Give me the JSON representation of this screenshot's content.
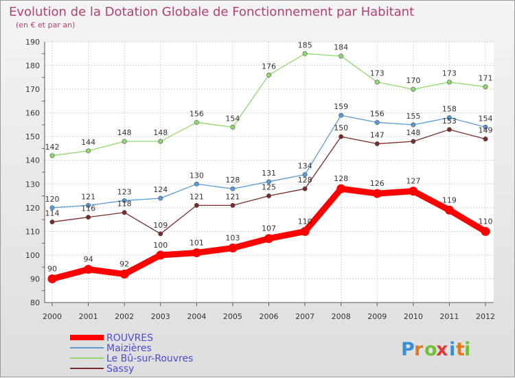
{
  "chart_data": {
    "type": "line",
    "title": "Evolution de la Dotation Globale de Fonctionnement par Habitant",
    "subtitle": "(en € et par an)",
    "x": [
      "2000",
      "2001",
      "2002",
      "2003",
      "2004",
      "2005",
      "2006",
      "2007",
      "2008",
      "2009",
      "2010",
      "2011",
      "2012"
    ],
    "ylim": [
      80,
      190
    ],
    "yticks": [
      80,
      90,
      100,
      110,
      120,
      130,
      140,
      150,
      160,
      170,
      180,
      190
    ],
    "grid": true,
    "legend_position": "bottom-left",
    "series": [
      {
        "name": "ROUVRES",
        "color": "#ff0000",
        "values": [
          90,
          94,
          92,
          100,
          101,
          103,
          107,
          110,
          128,
          126,
          127,
          119,
          110
        ]
      },
      {
        "name": "Maizières",
        "color": "#5b9bd5",
        "values": [
          120,
          121,
          123,
          124,
          130,
          128,
          131,
          134,
          159,
          156,
          155,
          158,
          154
        ]
      },
      {
        "name": "Le Bû-sur-Rouvres",
        "color": "#8fd86a",
        "values": [
          142,
          144,
          148,
          148,
          156,
          154,
          176,
          185,
          184,
          173,
          170,
          173,
          171
        ]
      },
      {
        "name": "Sassy",
        "color": "#7a2a2a",
        "values": [
          114,
          116,
          118,
          109,
          121,
          121,
          125,
          128,
          150,
          147,
          148,
          153,
          149
        ]
      }
    ]
  },
  "logo": {
    "letters": [
      "P",
      "r",
      "o",
      "x",
      "i",
      "t",
      "i"
    ],
    "colors": [
      "#3a8ed8",
      "#e07b20",
      "#6fbf3a",
      "#e03a3a",
      "#3a8ed8",
      "#e07b20",
      "#6fbf3a"
    ]
  }
}
